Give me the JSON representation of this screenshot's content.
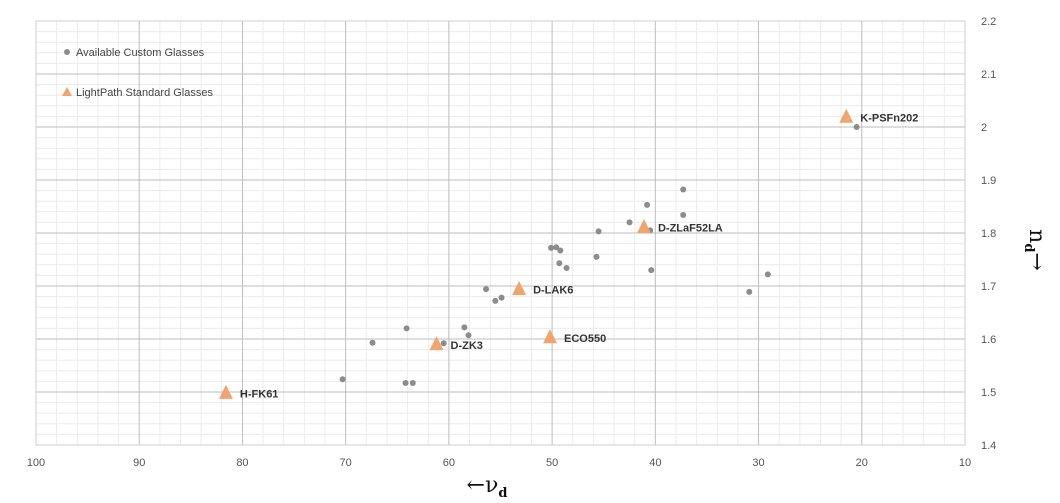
{
  "chart_data": {
    "type": "scatter",
    "title": "",
    "xlabel": "←ν",
    "xlabel_sub": "d",
    "ylabel": "n",
    "ylabel_sub": "d",
    "ylabel_arrow": "→",
    "xlim": [
      100,
      10
    ],
    "x_reversed": true,
    "ylim": [
      1.4,
      2.2
    ],
    "x_ticks": [
      100,
      90,
      80,
      70,
      60,
      50,
      40,
      30,
      20,
      10
    ],
    "y_ticks": [
      "1.4",
      "1.5",
      "1.6",
      "1.7",
      "1.8",
      "1.9",
      "2",
      "2.1",
      "2.2"
    ],
    "y_axis_position": "right",
    "grid": true,
    "legend_position": "top-left",
    "series": [
      {
        "name": "Available Custom Glasses",
        "marker": "circle",
        "color": "#8c8c8c",
        "points": [
          {
            "x": 20.5,
            "y": 2.0
          },
          {
            "x": 37.3,
            "y": 1.882
          },
          {
            "x": 40.8,
            "y": 1.853
          },
          {
            "x": 37.3,
            "y": 1.834
          },
          {
            "x": 42.5,
            "y": 1.82
          },
          {
            "x": 40.5,
            "y": 1.805
          },
          {
            "x": 45.5,
            "y": 1.803
          },
          {
            "x": 49.6,
            "y": 1.773
          },
          {
            "x": 50.1,
            "y": 1.772
          },
          {
            "x": 49.2,
            "y": 1.767
          },
          {
            "x": 45.7,
            "y": 1.755
          },
          {
            "x": 49.3,
            "y": 1.743
          },
          {
            "x": 48.6,
            "y": 1.734
          },
          {
            "x": 40.4,
            "y": 1.73
          },
          {
            "x": 29.1,
            "y": 1.722
          },
          {
            "x": 56.4,
            "y": 1.694
          },
          {
            "x": 30.9,
            "y": 1.689
          },
          {
            "x": 54.9,
            "y": 1.678
          },
          {
            "x": 55.5,
            "y": 1.672
          },
          {
            "x": 58.5,
            "y": 1.622
          },
          {
            "x": 64.1,
            "y": 1.62
          },
          {
            "x": 58.1,
            "y": 1.607
          },
          {
            "x": 67.4,
            "y": 1.593
          },
          {
            "x": 60.5,
            "y": 1.592
          },
          {
            "x": 70.3,
            "y": 1.524
          },
          {
            "x": 64.2,
            "y": 1.517
          },
          {
            "x": 63.5,
            "y": 1.517
          }
        ]
      },
      {
        "name": "LightPath Standard Glasses",
        "marker": "triangle",
        "color": "#f0a46e",
        "points": [
          {
            "x": 81.6,
            "y": 1.497,
            "label": "H-FK61"
          },
          {
            "x": 61.2,
            "y": 1.589,
            "label": "D-ZK3"
          },
          {
            "x": 50.2,
            "y": 1.602,
            "label": "ECO550"
          },
          {
            "x": 53.2,
            "y": 1.693,
            "label": "D-LAK6"
          },
          {
            "x": 41.1,
            "y": 1.81,
            "label": "D-ZLaF52LA"
          },
          {
            "x": 21.5,
            "y": 2.018,
            "label": "K-PSFn202"
          }
        ]
      }
    ]
  }
}
